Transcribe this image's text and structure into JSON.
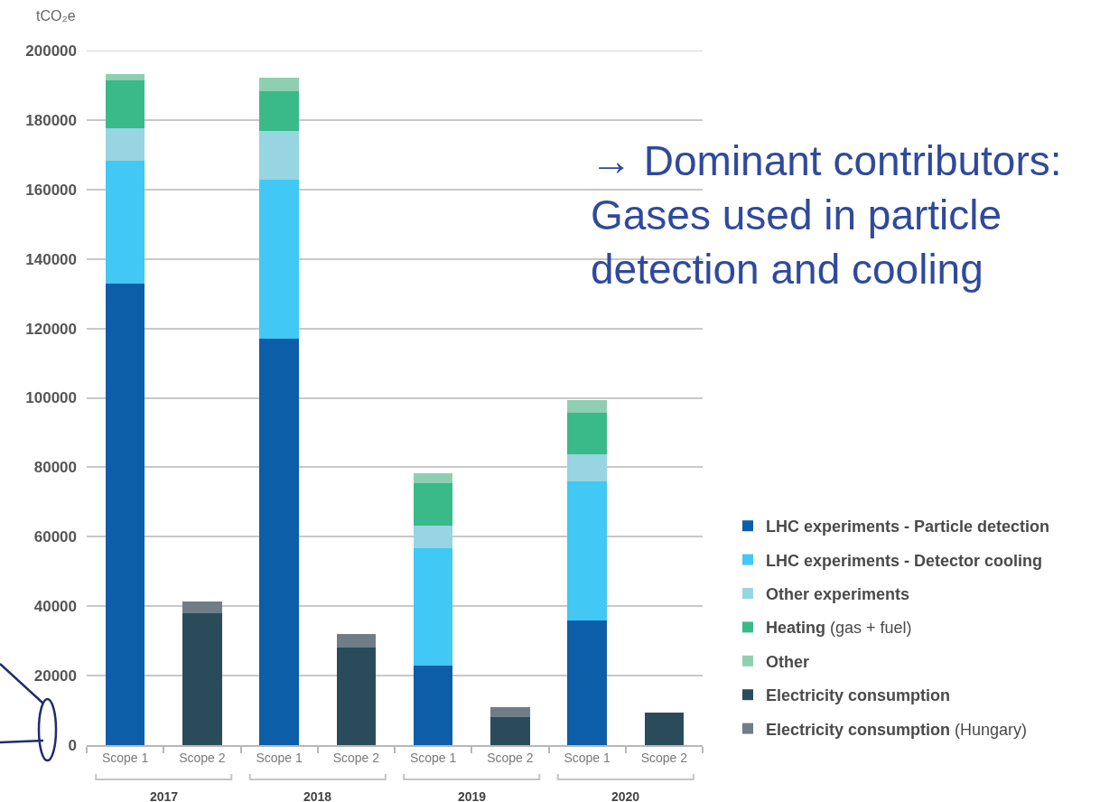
{
  "chart_data": {
    "type": "bar",
    "stacked": true,
    "categories": [
      "Scope 1",
      "Scope 2",
      "Scope 1",
      "Scope 2",
      "Scope 1",
      "Scope 2",
      "Scope 1",
      "Scope 2"
    ],
    "series": [
      {
        "name": "LHC experiments - Particle detection",
        "color": "#0c5ea8",
        "values": [
          133000,
          null,
          117000,
          null,
          22900,
          null,
          35900,
          null
        ]
      },
      {
        "name": "LHC experiments - Detector cooling",
        "color": "#42c8f4",
        "values": [
          35300,
          null,
          45700,
          null,
          33800,
          null,
          40100,
          null
        ]
      },
      {
        "name": "Other experiments",
        "color": "#96d5e1",
        "values": [
          9400,
          null,
          14100,
          null,
          6400,
          null,
          7700,
          null
        ]
      },
      {
        "name": "Heating (gas + fuel)",
        "color": "#3aba89",
        "values": [
          13800,
          null,
          11500,
          null,
          12300,
          null,
          12000,
          null
        ]
      },
      {
        "name": "Other",
        "color": "#8fcfb1",
        "values": [
          1800,
          null,
          3800,
          null,
          3000,
          null,
          3600,
          null
        ]
      },
      {
        "name": "Electricity consumption",
        "color": "#2a4c5a",
        "values": [
          null,
          38000,
          null,
          28200,
          null,
          8000,
          null,
          9400
        ]
      },
      {
        "name": "Electricity consumption (Hungary)",
        "color": "#707d87",
        "values": [
          null,
          3300,
          null,
          3700,
          null,
          2800,
          null,
          null
        ]
      }
    ],
    "ylabel": "tCO₂e",
    "ylim": [
      0,
      200000
    ],
    "yticks": [
      0,
      20000,
      40000,
      60000,
      80000,
      100000,
      120000,
      140000,
      160000,
      180000,
      200000
    ],
    "grid": "y",
    "legend": "bottom right",
    "annotations": [
      "→ Dominant contributors: Gases used in particle detection and cooling",
      "2017",
      "2018",
      "2019",
      "2020"
    ]
  }
}
